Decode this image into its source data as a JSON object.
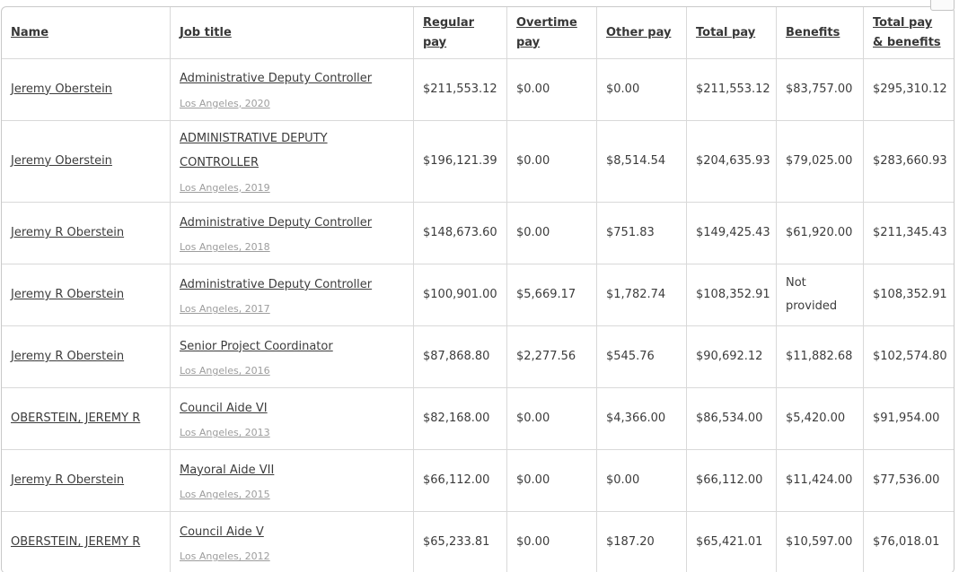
{
  "colors": {
    "background": "#ffffff",
    "table_border": "#c9c9c9",
    "cell_divider": "#d9d9d9",
    "text": "#3c3c3c",
    "muted_link": "#9d9d9d"
  },
  "table": {
    "columns": [
      "Name",
      "Job title",
      "Regular pay",
      "Overtime pay",
      "Other pay",
      "Total pay",
      "Benefits",
      "Total pay & benefits"
    ],
    "rows": [
      {
        "name": "Jeremy Oberstein",
        "job_title": "Administrative Deputy Controller",
        "location": "Los Angeles, 2020",
        "regular_pay": "$211,553.12",
        "overtime_pay": "$0.00",
        "other_pay": "$0.00",
        "total_pay": "$211,553.12",
        "benefits": "$83,757.00",
        "total_pay_benefits": "$295,310.12"
      },
      {
        "name": "Jeremy Oberstein",
        "job_title": "ADMINISTRATIVE DEPUTY CONTROLLER",
        "location": "Los Angeles, 2019",
        "regular_pay": "$196,121.39",
        "overtime_pay": "$0.00",
        "other_pay": "$8,514.54",
        "total_pay": "$204,635.93",
        "benefits": "$79,025.00",
        "total_pay_benefits": "$283,660.93"
      },
      {
        "name": "Jeremy R Oberstein",
        "job_title": "Administrative Deputy Controller",
        "location": "Los Angeles, 2018",
        "regular_pay": "$148,673.60",
        "overtime_pay": "$0.00",
        "other_pay": "$751.83",
        "total_pay": "$149,425.43",
        "benefits": "$61,920.00",
        "total_pay_benefits": "$211,345.43"
      },
      {
        "name": "Jeremy R Oberstein",
        "job_title": "Administrative Deputy Controller",
        "location": "Los Angeles, 2017",
        "regular_pay": "$100,901.00",
        "overtime_pay": "$5,669.17",
        "other_pay": "$1,782.74",
        "total_pay": "$108,352.91",
        "benefits": "Not provided",
        "total_pay_benefits": "$108,352.91"
      },
      {
        "name": "Jeremy R Oberstein",
        "job_title": "Senior Project Coordinator",
        "location": "Los Angeles, 2016",
        "regular_pay": "$87,868.80",
        "overtime_pay": "$2,277.56",
        "other_pay": "$545.76",
        "total_pay": "$90,692.12",
        "benefits": "$11,882.68",
        "total_pay_benefits": "$102,574.80"
      },
      {
        "name": "OBERSTEIN, JEREMY R",
        "job_title": "Council Aide VI",
        "location": "Los Angeles, 2013",
        "regular_pay": "$82,168.00",
        "overtime_pay": "$0.00",
        "other_pay": "$4,366.00",
        "total_pay": "$86,534.00",
        "benefits": "$5,420.00",
        "total_pay_benefits": "$91,954.00"
      },
      {
        "name": "Jeremy R Oberstein",
        "job_title": "Mayoral Aide VII",
        "location": "Los Angeles, 2015",
        "regular_pay": "$66,112.00",
        "overtime_pay": "$0.00",
        "other_pay": "$0.00",
        "total_pay": "$66,112.00",
        "benefits": "$11,424.00",
        "total_pay_benefits": "$77,536.00"
      },
      {
        "name": "OBERSTEIN, JEREMY R",
        "job_title": "Council Aide V",
        "location": "Los Angeles, 2012",
        "regular_pay": "$65,233.81",
        "overtime_pay": "$0.00",
        "other_pay": "$187.20",
        "total_pay": "$65,421.01",
        "benefits": "$10,597.00",
        "total_pay_benefits": "$76,018.01"
      }
    ]
  }
}
